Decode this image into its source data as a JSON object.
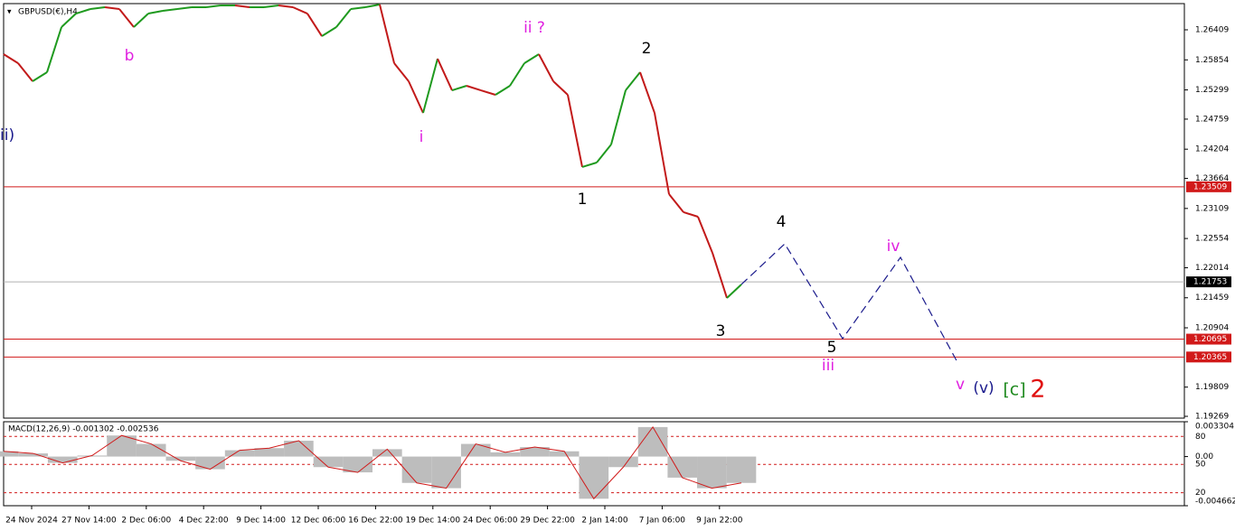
{
  "chart_data": {
    "type": "line",
    "title": "GBPUSD(€),H4",
    "ylim": [
      1.19236,
      1.26893
    ],
    "yticks": [
      1.26409,
      1.25854,
      1.25299,
      1.24759,
      1.24204,
      1.23664,
      1.23109,
      1.22554,
      1.22014,
      1.21459,
      1.20904,
      1.19809,
      1.19269
    ],
    "x_labels": [
      "24 Nov 2024",
      "27 Nov 14:00",
      "2 Dec 06:00",
      "4 Dec 22:00",
      "9 Dec 14:00",
      "12 Dec 06:00",
      "16 Dec 22:00",
      "19 Dec 14:00",
      "24 Dec 06:00",
      "29 Dec 22:00",
      "2 Jan 14:00",
      "7 Jan 06:00",
      "9 Jan 22:00"
    ],
    "series": [
      {
        "name": "GBPUSD",
        "up_color": "#1f9a1f",
        "down_color": "#c21a1a",
        "values": [
          1.25959,
          1.25792,
          1.25458,
          1.25625,
          1.26459,
          1.26709,
          1.26793,
          1.26826,
          1.26793,
          1.26459,
          1.26709,
          1.26759,
          1.26793,
          1.26826,
          1.26826,
          1.26859,
          1.26859,
          1.26826,
          1.26826,
          1.26859,
          1.26826,
          1.26709,
          1.26292,
          1.26459,
          1.26793,
          1.26826,
          1.26876,
          1.25792,
          1.25458,
          1.24874,
          1.25875,
          1.25291,
          1.25375,
          1.25291,
          1.25208,
          1.25375,
          1.25792,
          1.25959,
          1.25458,
          1.25208,
          1.23874,
          1.23957,
          1.24291,
          1.25291,
          1.25625,
          1.24874,
          1.23373,
          1.2304,
          1.22956,
          1.22289,
          1.21455,
          1.21705
        ]
      },
      {
        "name": "projection",
        "color": "#1a1a8c",
        "x": [
          51,
          54,
          58,
          62,
          66
        ],
        "values": [
          1.21705,
          1.22456,
          1.20704,
          1.22206,
          1.20237
        ]
      }
    ],
    "levels": [
      {
        "value": 1.23509,
        "label": "1.23509",
        "color": "#d11a1a"
      },
      {
        "value": 1.21753,
        "label": "1.21753",
        "color": "#b0b0b0"
      },
      {
        "value": 1.20695,
        "label": "1.20695",
        "color": "#d11a1a"
      },
      {
        "value": 1.20365,
        "label": "1.20365",
        "color": "#d11a1a"
      }
    ],
    "annotations": [
      "b",
      "ii)",
      "i",
      "ii ?",
      "2",
      "1",
      "4",
      "3",
      "5",
      "iii",
      "iv",
      "v",
      "(v)",
      "[c]",
      "2"
    ],
    "macd": {
      "title": "MACD(12,26,9) -0.001302 -0.002536",
      "ylim": [
        -0.004662,
        0.003304
      ],
      "yticks": [
        0.003304,
        {
          "value": 0,
          "label": "0.00"
        },
        -0.004662
      ],
      "levels": [
        {
          "value": 0.00191,
          "label": "80"
        },
        {
          "value": -0.00074,
          "label": "50"
        },
        {
          "value": -0.00343,
          "label": "20"
        }
      ],
      "histogram_color": "#bdbdbd",
      "signal_color": "#d11a1a",
      "values": [
        0.0005,
        0.0003,
        -0.0006,
        0.0001,
        0.002,
        0.0012,
        -0.0004,
        -0.0012,
        0.0006,
        0.0008,
        0.0015,
        -0.001,
        -0.0015,
        0.0007,
        -0.0025,
        -0.003,
        0.0012,
        0.0004,
        0.0009,
        0.0005,
        -0.004,
        -0.001,
        0.0028,
        -0.002,
        -0.003,
        -0.0025
      ]
    }
  }
}
